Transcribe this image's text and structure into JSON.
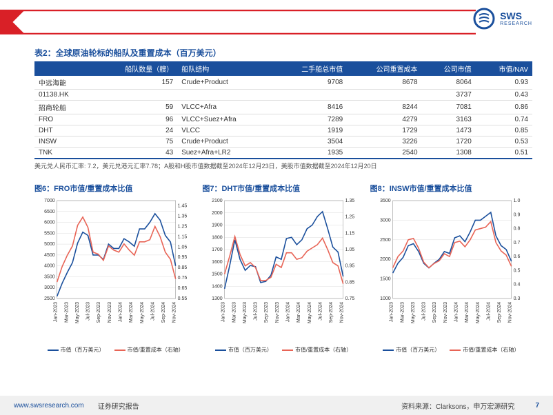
{
  "logo": {
    "main": "SWS",
    "sub": "RESEARCH"
  },
  "table": {
    "title": "表2：全球原油轮标的船队及重置成本（百万美元）",
    "columns": [
      "",
      "船队数量（艘）",
      "船队结构",
      "二手船总市值",
      "公司重置成本",
      "公司市值",
      "市值/NAV"
    ],
    "rows": [
      [
        "中远海能",
        "157",
        "Crude+Product",
        "9708",
        "8678",
        "8064",
        "0.93"
      ],
      [
        "01138.HK",
        "",
        "",
        "",
        "",
        "3737",
        "0.43"
      ],
      [
        "招商轮船",
        "59",
        "VLCC+Afra",
        "8416",
        "8244",
        "7081",
        "0.86"
      ],
      [
        "FRO",
        "96",
        "VLCC+Suez+Afra",
        "7289",
        "4279",
        "3163",
        "0.74"
      ],
      [
        "DHT",
        "24",
        "VLCC",
        "1919",
        "1729",
        "1473",
        "0.85"
      ],
      [
        "INSW",
        "75",
        "Crude+Product",
        "3504",
        "3226",
        "1720",
        "0.53"
      ],
      [
        "TNK",
        "43",
        "Suez+Afra+LR2",
        "1935",
        "2540",
        "1308",
        "0.51"
      ]
    ],
    "note": "美元兑人民币汇率: 7.2，美元兑港元汇率7.78；A股和H股市值数据截至2024年12月23日，美股市值数据截至2024年12月20日"
  },
  "charts": [
    {
      "title": "图6：FRO市值/重置成本比值",
      "left_axis": {
        "min": 2500,
        "max": 7000,
        "step": 500
      },
      "right_axis": {
        "min": 0.55,
        "max": 1.5,
        "step": 0.1,
        "decimals": 2
      },
      "x_labels": [
        "Jan-2023",
        "Mar-2023",
        "May-2023",
        "Jul-2023",
        "Sep-2023",
        "Nov-2023",
        "Jan-2024",
        "Mar-2024",
        "May-2024",
        "Jul-2024",
        "Sep-2024",
        "Nov-2024"
      ],
      "series_blue": [
        2600,
        3200,
        3700,
        4150,
        5050,
        5550,
        5400,
        4500,
        4500,
        4300,
        5000,
        4800,
        4800,
        5250,
        5100,
        4900,
        5700,
        5700,
        6000,
        6400,
        6100,
        5400,
        5100,
        4000
      ],
      "series_red": [
        0.71,
        0.86,
        0.97,
        1.06,
        1.26,
        1.34,
        1.24,
        1.0,
        0.98,
        0.92,
        1.06,
        1.02,
        1.0,
        1.08,
        1.02,
        0.97,
        1.1,
        1.1,
        1.12,
        1.25,
        1.15,
        1.0,
        0.93,
        0.74
      ],
      "legend_blue": "市值（百万美元）",
      "legend_red": "市值/重置成本（右轴）"
    },
    {
      "title": "图7：DHT市值/重置成本比值",
      "left_axis": {
        "min": 1300,
        "max": 2100,
        "step": 100
      },
      "right_axis": {
        "min": 0.75,
        "max": 1.35,
        "step": 0.1,
        "decimals": 2
      },
      "x_labels": [
        "Jan-2023",
        "Mar-2023",
        "May-2023",
        "Jul-2023",
        "Sep-2023",
        "Nov-2023",
        "Jan-2024",
        "Mar-2024",
        "May-2024",
        "Jul-2024",
        "Sep-2024",
        "Nov-2024"
      ],
      "series_blue": [
        1380,
        1570,
        1780,
        1620,
        1530,
        1570,
        1560,
        1430,
        1440,
        1490,
        1640,
        1620,
        1790,
        1800,
        1740,
        1780,
        1870,
        1900,
        1970,
        2010,
        1870,
        1720,
        1680,
        1480
      ],
      "series_red": [
        0.9,
        1.01,
        1.13,
        1.02,
        0.95,
        0.97,
        0.94,
        0.86,
        0.86,
        0.88,
        0.96,
        0.94,
        1.03,
        1.03,
        0.99,
        1.0,
        1.04,
        1.06,
        1.08,
        1.12,
        1.05,
        0.97,
        0.95,
        0.84
      ],
      "legend_blue": "市值（百万美元）",
      "legend_red": "市值/重置成本（右轴）"
    },
    {
      "title": "图8：INSW市值/重置成本比值",
      "left_axis": {
        "min": 1000,
        "max": 3500,
        "step": 500
      },
      "right_axis": {
        "min": 0.3,
        "max": 1.0,
        "step": 0.1,
        "decimals": 1
      },
      "x_labels": [
        "Jan-2023",
        "Mar-2023",
        "May-2023",
        "Jul-2023",
        "Sep-2023",
        "Nov-2023",
        "Jan-2024",
        "Mar-2024",
        "May-2024",
        "Jul-2024",
        "Sep-2024",
        "Nov-2024"
      ],
      "series_blue": [
        1650,
        1900,
        2050,
        2350,
        2400,
        2200,
        1900,
        1780,
        1900,
        2000,
        2200,
        2150,
        2550,
        2600,
        2450,
        2700,
        3000,
        3000,
        3100,
        3200,
        2600,
        2350,
        2250,
        1950
      ],
      "series_red": [
        0.52,
        0.6,
        0.64,
        0.72,
        0.73,
        0.66,
        0.56,
        0.52,
        0.55,
        0.57,
        0.62,
        0.6,
        0.7,
        0.71,
        0.67,
        0.72,
        0.79,
        0.8,
        0.81,
        0.85,
        0.7,
        0.64,
        0.61,
        0.53
      ],
      "legend_blue": "市值（百万美元）",
      "legend_red": "市值/重置成本（右轴）"
    }
  ],
  "colors": {
    "brand_blue": "#1a4f9c",
    "series_blue": "#1a4f9c",
    "series_red": "#e86456",
    "grid": "#dddddd",
    "red_accent": "#d92027"
  },
  "footer": {
    "url": "www.swsresearch.com",
    "report_label": "证券研究报告",
    "source": "资料来源：Clarksons，申万宏源研究",
    "page": "7"
  }
}
